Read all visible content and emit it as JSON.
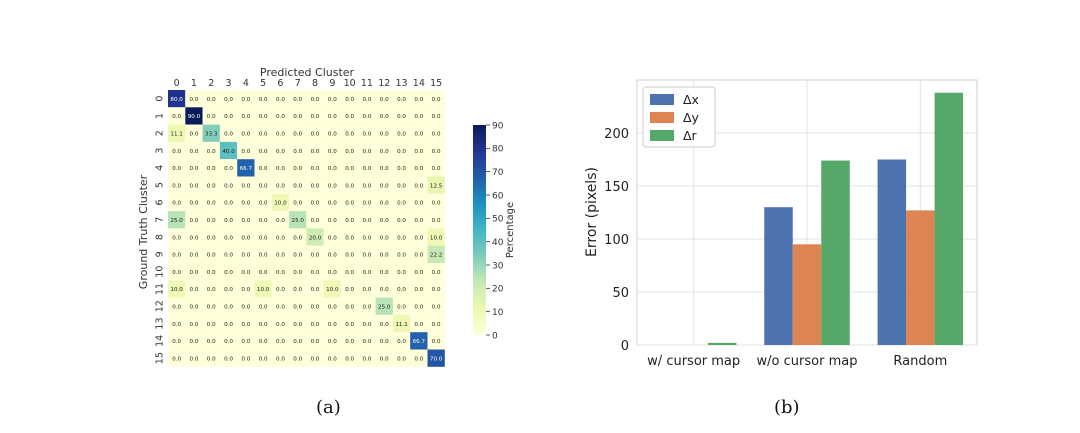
{
  "chart_data": [
    {
      "type": "heatmap",
      "xlabel": "Predicted Cluster",
      "ylabel": "Ground Truth Cluster",
      "x_categories": [
        "0",
        "1",
        "2",
        "3",
        "4",
        "5",
        "6",
        "7",
        "8",
        "9",
        "10",
        "11",
        "12",
        "13",
        "14",
        "15"
      ],
      "y_categories": [
        "0",
        "1",
        "2",
        "3",
        "4",
        "5",
        "6",
        "7",
        "8",
        "9",
        "10",
        "11",
        "12",
        "13",
        "14",
        "15"
      ],
      "values": [
        [
          80.0,
          0.0,
          0.0,
          0.0,
          0.0,
          0.0,
          0.0,
          0.0,
          0.0,
          0.0,
          0.0,
          0.0,
          0.0,
          0.0,
          0.0,
          0.0
        ],
        [
          0.0,
          90.0,
          0.0,
          0.0,
          0.0,
          0.0,
          0.0,
          0.0,
          0.0,
          0.0,
          0.0,
          0.0,
          0.0,
          0.0,
          0.0,
          0.0
        ],
        [
          11.1,
          0.0,
          33.3,
          0.0,
          0.0,
          0.0,
          0.0,
          0.0,
          0.0,
          0.0,
          0.0,
          0.0,
          0.0,
          0.0,
          0.0,
          0.0
        ],
        [
          0.0,
          0.0,
          0.0,
          40.0,
          0.0,
          0.0,
          0.0,
          0.0,
          0.0,
          0.0,
          0.0,
          0.0,
          0.0,
          0.0,
          0.0,
          0.0
        ],
        [
          0.0,
          0.0,
          0.0,
          0.0,
          66.7,
          0.0,
          0.0,
          0.0,
          0.0,
          0.0,
          0.0,
          0.0,
          0.0,
          0.0,
          0.0,
          0.0
        ],
        [
          0.0,
          0.0,
          0.0,
          0.0,
          0.0,
          0.0,
          0.0,
          0.0,
          0.0,
          0.0,
          0.0,
          0.0,
          0.0,
          0.0,
          0.0,
          12.5
        ],
        [
          0.0,
          0.0,
          0.0,
          0.0,
          0.0,
          0.0,
          10.0,
          0.0,
          0.0,
          0.0,
          0.0,
          0.0,
          0.0,
          0.0,
          0.0,
          0.0
        ],
        [
          25.0,
          0.0,
          0.0,
          0.0,
          0.0,
          0.0,
          0.0,
          25.0,
          0.0,
          0.0,
          0.0,
          0.0,
          0.0,
          0.0,
          0.0,
          0.0
        ],
        [
          0.0,
          0.0,
          0.0,
          0.0,
          0.0,
          0.0,
          0.0,
          0.0,
          20.0,
          0.0,
          0.0,
          0.0,
          0.0,
          0.0,
          0.0,
          10.0
        ],
        [
          0.0,
          0.0,
          0.0,
          0.0,
          0.0,
          0.0,
          0.0,
          0.0,
          0.0,
          0.0,
          0.0,
          0.0,
          0.0,
          0.0,
          0.0,
          22.2
        ],
        [
          0.0,
          0.0,
          0.0,
          0.0,
          0.0,
          0.0,
          0.0,
          0.0,
          0.0,
          0.0,
          0.0,
          0.0,
          0.0,
          0.0,
          0.0,
          0.0
        ],
        [
          10.0,
          0.0,
          0.0,
          0.0,
          0.0,
          10.0,
          0.0,
          0.0,
          0.0,
          10.0,
          0.0,
          0.0,
          0.0,
          0.0,
          0.0,
          0.0
        ],
        [
          0.0,
          0.0,
          0.0,
          0.0,
          0.0,
          0.0,
          0.0,
          0.0,
          0.0,
          0.0,
          0.0,
          0.0,
          25.0,
          0.0,
          0.0,
          0.0
        ],
        [
          0.0,
          0.0,
          0.0,
          0.0,
          0.0,
          0.0,
          0.0,
          0.0,
          0.0,
          0.0,
          0.0,
          0.0,
          0.0,
          11.1,
          0.0,
          0.0
        ],
        [
          0.0,
          0.0,
          0.0,
          0.0,
          0.0,
          0.0,
          0.0,
          0.0,
          0.0,
          0.0,
          0.0,
          0.0,
          0.0,
          0.0,
          66.7,
          0.0
        ],
        [
          0.0,
          0.0,
          0.0,
          0.0,
          0.0,
          0.0,
          0.0,
          0.0,
          0.0,
          0.0,
          0.0,
          0.0,
          0.0,
          0.0,
          0.0,
          70.0
        ]
      ],
      "colorbar": {
        "label": "Percentage",
        "ticks": [
          0,
          10,
          20,
          30,
          40,
          50,
          60,
          70,
          80,
          90
        ],
        "range": [
          0,
          90
        ],
        "colormap": "YlGnBu"
      }
    },
    {
      "type": "bar",
      "categories": [
        "w/ cursor map",
        "w/o cursor map",
        "Random"
      ],
      "series": [
        {
          "name": "Δx",
          "color": "#4c72b0",
          "values": [
            0,
            130,
            175
          ]
        },
        {
          "name": "Δy",
          "color": "#dd8452",
          "values": [
            0,
            95,
            127
          ]
        },
        {
          "name": "Δr",
          "color": "#55a868",
          "values": [
            2,
            174,
            238
          ]
        }
      ],
      "ylabel": "Error (pixels)",
      "xlabel": "",
      "ylim": [
        0,
        250
      ],
      "yticks": [
        0,
        50,
        100,
        150,
        200
      ],
      "grid": true,
      "legend": "top-left"
    }
  ],
  "captions": {
    "a": "(a)",
    "b": "(b)"
  }
}
